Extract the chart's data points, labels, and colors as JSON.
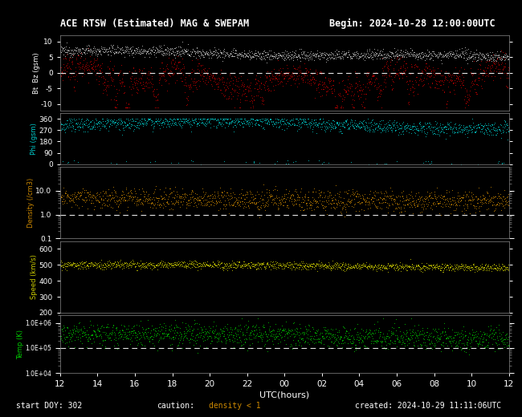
{
  "title": "ACE RTSW (Estimated) MAG & SWEPAM",
  "begin_label": "Begin: 2024-10-28 12:00:00UTC",
  "start_doy": "start DOY: 302",
  "caution": "caution:",
  "density_caution": "density < 1",
  "created": "created: 2024-10-29 11:11:06UTC",
  "xlabel": "UTC(hours)",
  "xtick_labels": [
    "12",
    "14",
    "16",
    "18",
    "20",
    "22",
    "00",
    "02",
    "04",
    "06",
    "08",
    "10",
    "12"
  ],
  "background_color": "#000000",
  "text_color": "#ffffff",
  "panels": {
    "bt_bz": {
      "ylabel": "Bt  Bz (gsm)",
      "ylim": [
        -12,
        12
      ],
      "yticks": [
        -10,
        -5,
        0,
        5,
        10
      ],
      "bt_color": "#c8c8c8",
      "bz_color": "#cc0000",
      "hline_color": "#ffffff",
      "hline_style": "--"
    },
    "phi": {
      "ylabel": "Phi (gsm)",
      "ylabel_color": "#00cccc",
      "ylim": [
        0,
        405
      ],
      "yticks": [
        0,
        90,
        180,
        270,
        360
      ],
      "phi_color": "#00cccc"
    },
    "density": {
      "ylabel": "Density (/cm3)",
      "ylabel_color": "#cc8800",
      "ylim": [
        0.1,
        100
      ],
      "density_color": "#cc8800",
      "hline": 1.0,
      "hline_color": "#ffffff",
      "hline_style": "--",
      "ytick_labels": [
        "0.1",
        "1.0",
        "10.0"
      ]
    },
    "speed": {
      "ylabel": "Speed (km/s)",
      "ylabel_color": "#cccc00",
      "ylim": [
        200,
        650
      ],
      "yticks": [
        200,
        300,
        400,
        500,
        600
      ],
      "speed_color": "#cccc00"
    },
    "temp": {
      "ylabel": "Temp (K)",
      "ylabel_color": "#00cc00",
      "ylim": [
        10000,
        2000000
      ],
      "temp_color": "#00cc00",
      "hline": 100000,
      "hline_color": "#ffffff",
      "hline_style": "--",
      "ytick_labels": [
        "1.0E+04",
        "1.0E+05",
        "1.0E+06"
      ]
    }
  },
  "fig_width": 6.5,
  "fig_height": 5.2,
  "dpi": 100
}
